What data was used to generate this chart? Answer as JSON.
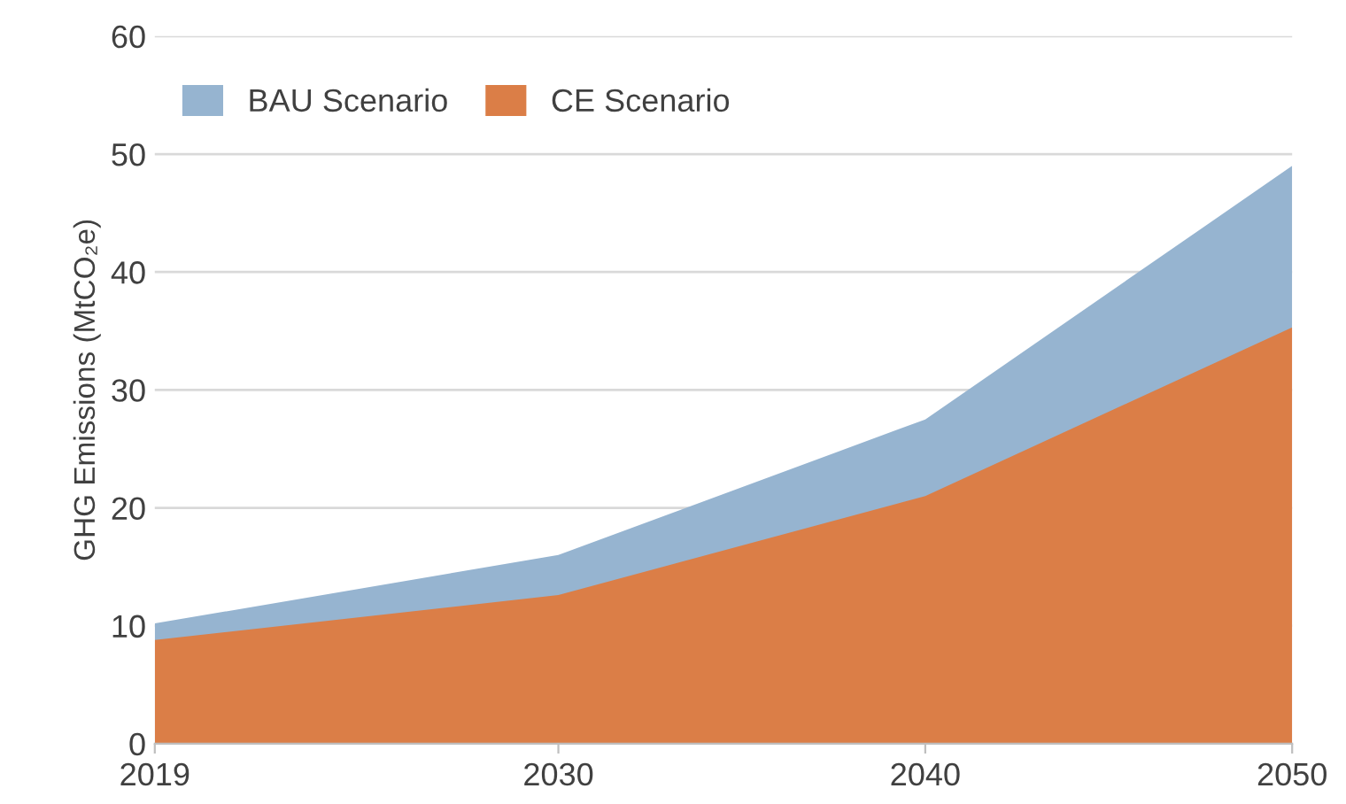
{
  "chart_data": {
    "type": "area",
    "ylabel": "GHG Emissions (MtCO₂e)",
    "x": [
      2019,
      2030,
      2040,
      2050
    ],
    "series": [
      {
        "name": "BAU Scenario",
        "color": "#96b4d0",
        "values": [
          10.2,
          16,
          27.5,
          49
        ]
      },
      {
        "name": "CE Scenario",
        "color": "#db7e47",
        "values": [
          8.8,
          12.6,
          21,
          35.3
        ]
      }
    ],
    "xlim": [
      2019,
      2050
    ],
    "xticks": [
      2019,
      2030,
      2040,
      2050
    ],
    "ylim": [
      0,
      60
    ],
    "yticks": [
      0,
      10,
      20,
      30,
      40,
      50,
      60
    ],
    "grid": "y",
    "legend": "top left"
  }
}
